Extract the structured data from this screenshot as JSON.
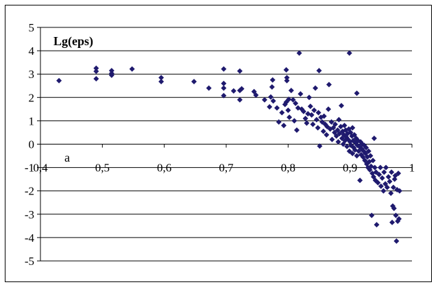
{
  "chart_data": {
    "type": "scatter",
    "title": "",
    "ylabel": "Lg(eps)",
    "xlabel": "a",
    "xlim": [
      0.4,
      1.0
    ],
    "ylim": [
      -5,
      5
    ],
    "x_ticks": [
      "0,4",
      "0,5",
      "0,6",
      "0,7",
      "0,8",
      "0,9",
      "1"
    ],
    "y_ticks": [
      "5",
      "4",
      "3",
      "2",
      "1",
      "0",
      "-1",
      "-2",
      "-3",
      "-4",
      "-5"
    ],
    "grid": "horizontal",
    "legend": "none",
    "marker": "diamond",
    "marker_color": "#1f1a6e",
    "points": [
      [
        0.43,
        2.72
      ],
      [
        0.49,
        3.25
      ],
      [
        0.49,
        3.12
      ],
      [
        0.49,
        2.8
      ],
      [
        0.515,
        3.15
      ],
      [
        0.515,
        3.03
      ],
      [
        0.515,
        2.95
      ],
      [
        0.548,
        3.22
      ],
      [
        0.595,
        2.85
      ],
      [
        0.595,
        2.68
      ],
      [
        0.648,
        2.68
      ],
      [
        0.672,
        2.4
      ],
      [
        0.696,
        3.22
      ],
      [
        0.696,
        2.6
      ],
      [
        0.696,
        2.4
      ],
      [
        0.696,
        2.08
      ],
      [
        0.712,
        2.28
      ],
      [
        0.722,
        3.13
      ],
      [
        0.722,
        2.3
      ],
      [
        0.725,
        2.37
      ],
      [
        0.722,
        1.9
      ],
      [
        0.745,
        2.25
      ],
      [
        0.748,
        2.1
      ],
      [
        0.762,
        1.9
      ],
      [
        0.77,
        1.6
      ],
      [
        0.772,
        2.02
      ],
      [
        0.774,
        2.45
      ],
      [
        0.775,
        2.75
      ],
      [
        0.776,
        1.85
      ],
      [
        0.782,
        1.55
      ],
      [
        0.785,
        0.95
      ],
      [
        0.79,
        1.35
      ],
      [
        0.793,
        0.8
      ],
      [
        0.795,
        1.7
      ],
      [
        0.797,
        1.8
      ],
      [
        0.798,
        2.72
      ],
      [
        0.798,
        2.85
      ],
      [
        0.797,
        3.18
      ],
      [
        0.8,
        1.45
      ],
      [
        0.801,
        1.92
      ],
      [
        0.802,
        1.15
      ],
      [
        0.805,
        2.3
      ],
      [
        0.808,
        1.9
      ],
      [
        0.81,
        1.0
      ],
      [
        0.812,
        1.75
      ],
      [
        0.814,
        0.6
      ],
      [
        0.816,
        1.55
      ],
      [
        0.818,
        3.9
      ],
      [
        0.82,
        2.15
      ],
      [
        0.822,
        1.5
      ],
      [
        0.825,
        1.4
      ],
      [
        0.828,
        1.1
      ],
      [
        0.83,
        0.9
      ],
      [
        0.832,
        1.3
      ],
      [
        0.834,
        2.0
      ],
      [
        0.836,
        1.62
      ],
      [
        0.838,
        1.25
      ],
      [
        0.84,
        0.85
      ],
      [
        0.842,
        1.45
      ],
      [
        0.844,
        2.4
      ],
      [
        0.846,
        1.05
      ],
      [
        0.848,
        0.7
      ],
      [
        0.849,
        1.35
      ],
      [
        0.85,
        3.15
      ],
      [
        0.851,
        -0.08
      ],
      [
        0.853,
        1.15
      ],
      [
        0.855,
        0.95
      ],
      [
        0.857,
        0.55
      ],
      [
        0.858,
        1.2
      ],
      [
        0.86,
        0.85
      ],
      [
        0.862,
        0.4
      ],
      [
        0.863,
        0.75
      ],
      [
        0.865,
        1.5
      ],
      [
        0.866,
        2.55
      ],
      [
        0.868,
        0.65
      ],
      [
        0.87,
        0.95
      ],
      [
        0.871,
        0.2
      ],
      [
        0.873,
        0.7
      ],
      [
        0.875,
        0.5
      ],
      [
        0.876,
        0.85
      ],
      [
        0.878,
        0.35
      ],
      [
        0.88,
        0.6
      ],
      [
        0.881,
        0.1
      ],
      [
        0.882,
        1.05
      ],
      [
        0.883,
        0.45
      ],
      [
        0.885,
        0.75
      ],
      [
        0.886,
        1.65
      ],
      [
        0.887,
        0.25
      ],
      [
        0.888,
        0.55
      ],
      [
        0.889,
        0.0
      ],
      [
        0.89,
        0.4
      ],
      [
        0.891,
        0.8
      ],
      [
        0.892,
        0.15
      ],
      [
        0.893,
        0.6
      ],
      [
        0.894,
        0.3
      ],
      [
        0.895,
        -0.1
      ],
      [
        0.896,
        0.45
      ],
      [
        0.897,
        0.2
      ],
      [
        0.898,
        0.65
      ],
      [
        0.899,
        3.9
      ],
      [
        0.899,
        -0.3
      ],
      [
        0.9,
        0.1
      ],
      [
        0.901,
        0.5
      ],
      [
        0.902,
        -0.05
      ],
      [
        0.903,
        0.35
      ],
      [
        0.904,
        0.7
      ],
      [
        0.904,
        -0.4
      ],
      [
        0.905,
        0.15
      ],
      [
        0.906,
        -0.15
      ],
      [
        0.907,
        0.4
      ],
      [
        0.908,
        -0.25
      ],
      [
        0.909,
        0.05
      ],
      [
        0.91,
        0.25
      ],
      [
        0.911,
        2.18
      ],
      [
        0.911,
        -0.5
      ],
      [
        0.912,
        -0.05
      ],
      [
        0.913,
        0.15
      ],
      [
        0.914,
        -0.3
      ],
      [
        0.915,
        -0.1
      ],
      [
        0.916,
        -1.55
      ],
      [
        0.917,
        0.1
      ],
      [
        0.918,
        -0.45
      ],
      [
        0.919,
        -0.2
      ],
      [
        0.92,
        0.0
      ],
      [
        0.921,
        -0.55
      ],
      [
        0.922,
        -0.3
      ],
      [
        0.923,
        -0.05
      ],
      [
        0.924,
        -0.7
      ],
      [
        0.925,
        -0.4
      ],
      [
        0.926,
        -0.15
      ],
      [
        0.927,
        -0.85
      ],
      [
        0.928,
        -0.55
      ],
      [
        0.929,
        -1.0
      ],
      [
        0.93,
        -0.3
      ],
      [
        0.931,
        -0.75
      ],
      [
        0.932,
        -1.1
      ],
      [
        0.933,
        -0.5
      ],
      [
        0.934,
        -0.95
      ],
      [
        0.935,
        -3.05
      ],
      [
        0.936,
        -1.25
      ],
      [
        0.937,
        -0.7
      ],
      [
        0.938,
        -1.4
      ],
      [
        0.939,
        0.25
      ],
      [
        0.94,
        -1.0
      ],
      [
        0.941,
        -1.55
      ],
      [
        0.942,
        -1.2
      ],
      [
        0.943,
        -3.45
      ],
      [
        0.945,
        -1.65
      ],
      [
        0.947,
        -1.3
      ],
      [
        0.949,
        -1.0
      ],
      [
        0.95,
        -1.8
      ],
      [
        0.952,
        -1.45
      ],
      [
        0.954,
        -2.0
      ],
      [
        0.955,
        -1.2
      ],
      [
        0.957,
        -1.7
      ],
      [
        0.958,
        -1.0
      ],
      [
        0.96,
        -1.85
      ],
      [
        0.962,
        -1.4
      ],
      [
        0.964,
        -1.6
      ],
      [
        0.966,
        -2.1
      ],
      [
        0.967,
        -1.2
      ],
      [
        0.968,
        -3.35
      ],
      [
        0.969,
        -2.65
      ],
      [
        0.97,
        -1.85
      ],
      [
        0.971,
        -2.75
      ],
      [
        0.972,
        -1.5
      ],
      [
        0.973,
        -1.35
      ],
      [
        0.974,
        -3.05
      ],
      [
        0.975,
        -4.15
      ],
      [
        0.976,
        -1.95
      ],
      [
        0.977,
        -3.3
      ],
      [
        0.978,
        -1.25
      ],
      [
        0.979,
        -3.2
      ],
      [
        0.98,
        -2.0
      ]
    ]
  }
}
